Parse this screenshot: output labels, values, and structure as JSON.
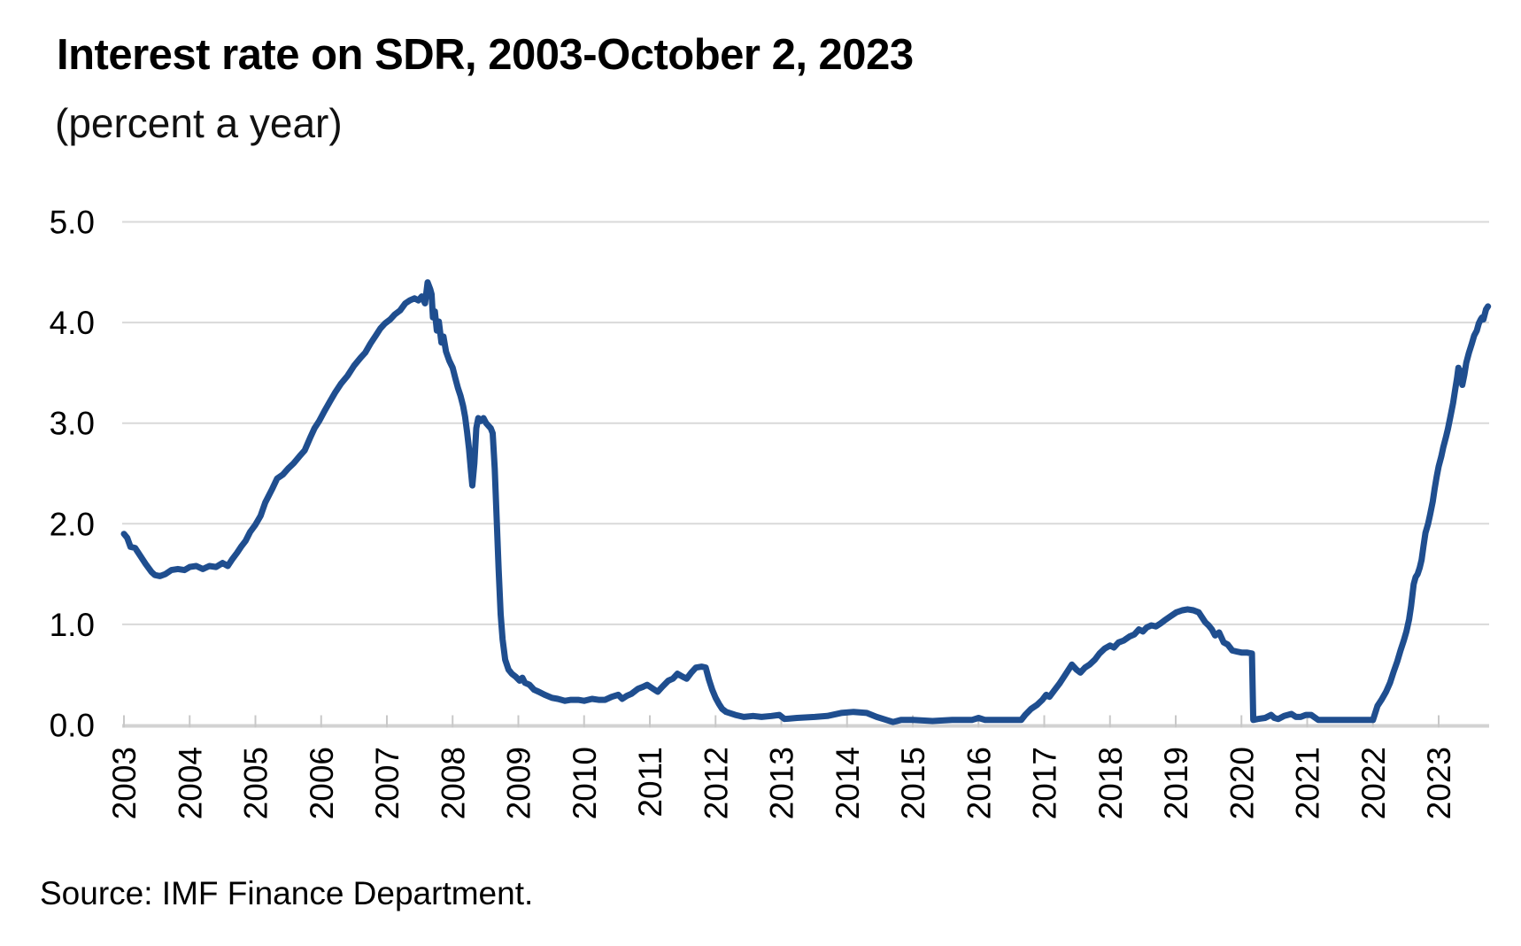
{
  "header": {
    "title": "Interest rate on SDR, 2003-October 2, 2023",
    "subtitle": "(percent a year)"
  },
  "footer": {
    "source": "Source: IMF Finance Department."
  },
  "chart_data": {
    "type": "line",
    "title": "Interest rate on SDR, 2003-October 2, 2023",
    "subtitle": "(percent a year)",
    "xlabel": "",
    "ylabel": "",
    "xlim": [
      2003.0,
      2023.77
    ],
    "ylim": [
      0.0,
      5.0
    ],
    "grid": "horizontal",
    "legend": "none",
    "y_ticks": [
      0,
      1,
      2,
      3,
      4,
      5
    ],
    "y_tick_labels": [
      "0.0",
      "1.0",
      "2.0",
      "3.0",
      "4.0",
      "5.0"
    ],
    "x_ticks": [
      2003,
      2004,
      2005,
      2006,
      2007,
      2008,
      2009,
      2010,
      2011,
      2012,
      2013,
      2014,
      2015,
      2016,
      2017,
      2018,
      2019,
      2020,
      2021,
      2022,
      2023
    ],
    "x_tick_labels": [
      "2003",
      "2004",
      "2005",
      "2006",
      "2007",
      "2008",
      "2009",
      "2010",
      "2011",
      "2012",
      "2013",
      "2014",
      "2015",
      "2016",
      "2017",
      "2018",
      "2019",
      "2020",
      "2021",
      "2022",
      "2023"
    ],
    "colors": {
      "line": "#1F4E8F",
      "grid": "#D9D9D9",
      "axis": "#D2D2D2",
      "tick": "#C8C8C8",
      "text": "#000000",
      "background": "#FFFFFF"
    },
    "series": [
      {
        "name": "SDR interest rate",
        "color": "#1F4E8F",
        "points": [
          [
            2003.0,
            1.9
          ],
          [
            2003.05,
            1.86
          ],
          [
            2003.1,
            1.77
          ],
          [
            2003.17,
            1.76
          ],
          [
            2003.25,
            1.68
          ],
          [
            2003.33,
            1.6
          ],
          [
            2003.42,
            1.52
          ],
          [
            2003.47,
            1.49
          ],
          [
            2003.55,
            1.48
          ],
          [
            2003.63,
            1.5
          ],
          [
            2003.72,
            1.54
          ],
          [
            2003.82,
            1.55
          ],
          [
            2003.92,
            1.54
          ],
          [
            2004.0,
            1.57
          ],
          [
            2004.1,
            1.58
          ],
          [
            2004.2,
            1.55
          ],
          [
            2004.3,
            1.58
          ],
          [
            2004.4,
            1.57
          ],
          [
            2004.5,
            1.61
          ],
          [
            2004.58,
            1.58
          ],
          [
            2004.65,
            1.65
          ],
          [
            2004.72,
            1.71
          ],
          [
            2004.78,
            1.77
          ],
          [
            2004.85,
            1.83
          ],
          [
            2004.92,
            1.92
          ],
          [
            2005.0,
            1.99
          ],
          [
            2005.08,
            2.08
          ],
          [
            2005.15,
            2.21
          ],
          [
            2005.25,
            2.34
          ],
          [
            2005.33,
            2.45
          ],
          [
            2005.42,
            2.49
          ],
          [
            2005.5,
            2.55
          ],
          [
            2005.58,
            2.6
          ],
          [
            2005.67,
            2.67
          ],
          [
            2005.75,
            2.73
          ],
          [
            2005.83,
            2.85
          ],
          [
            2005.9,
            2.95
          ],
          [
            2005.97,
            3.02
          ],
          [
            2006.05,
            3.12
          ],
          [
            2006.13,
            3.21
          ],
          [
            2006.21,
            3.3
          ],
          [
            2006.3,
            3.39
          ],
          [
            2006.4,
            3.47
          ],
          [
            2006.5,
            3.57
          ],
          [
            2006.6,
            3.65
          ],
          [
            2006.67,
            3.7
          ],
          [
            2006.75,
            3.79
          ],
          [
            2006.83,
            3.87
          ],
          [
            2006.9,
            3.94
          ],
          [
            2006.97,
            3.99
          ],
          [
            2007.05,
            4.03
          ],
          [
            2007.12,
            4.08
          ],
          [
            2007.2,
            4.12
          ],
          [
            2007.28,
            4.19
          ],
          [
            2007.35,
            4.22
          ],
          [
            2007.42,
            4.24
          ],
          [
            2007.48,
            4.22
          ],
          [
            2007.53,
            4.26
          ],
          [
            2007.58,
            4.19
          ],
          [
            2007.62,
            4.4
          ],
          [
            2007.66,
            4.33
          ],
          [
            2007.68,
            4.28
          ],
          [
            2007.7,
            4.05
          ],
          [
            2007.73,
            4.11
          ],
          [
            2007.76,
            3.92
          ],
          [
            2007.79,
            4.01
          ],
          [
            2007.83,
            3.8
          ],
          [
            2007.86,
            3.86
          ],
          [
            2007.9,
            3.71
          ],
          [
            2007.95,
            3.62
          ],
          [
            2008.0,
            3.55
          ],
          [
            2008.04,
            3.45
          ],
          [
            2008.08,
            3.35
          ],
          [
            2008.12,
            3.27
          ],
          [
            2008.16,
            3.17
          ],
          [
            2008.19,
            3.06
          ],
          [
            2008.22,
            2.91
          ],
          [
            2008.25,
            2.74
          ],
          [
            2008.28,
            2.52
          ],
          [
            2008.3,
            2.38
          ],
          [
            2008.33,
            2.6
          ],
          [
            2008.36,
            2.95
          ],
          [
            2008.39,
            3.05
          ],
          [
            2008.43,
            3.02
          ],
          [
            2008.47,
            3.05
          ],
          [
            2008.51,
            3.0
          ],
          [
            2008.55,
            2.97
          ],
          [
            2008.58,
            2.95
          ],
          [
            2008.61,
            2.9
          ],
          [
            2008.64,
            2.55
          ],
          [
            2008.67,
            2.05
          ],
          [
            2008.7,
            1.55
          ],
          [
            2008.73,
            1.1
          ],
          [
            2008.76,
            0.85
          ],
          [
            2008.8,
            0.65
          ],
          [
            2008.85,
            0.55
          ],
          [
            2008.9,
            0.51
          ],
          [
            2008.96,
            0.48
          ],
          [
            2009.02,
            0.44
          ],
          [
            2009.06,
            0.47
          ],
          [
            2009.1,
            0.42
          ],
          [
            2009.17,
            0.4
          ],
          [
            2009.24,
            0.35
          ],
          [
            2009.31,
            0.33
          ],
          [
            2009.4,
            0.3
          ],
          [
            2009.51,
            0.27
          ],
          [
            2009.6,
            0.26
          ],
          [
            2009.71,
            0.24
          ],
          [
            2009.8,
            0.25
          ],
          [
            2009.91,
            0.25
          ],
          [
            2010.0,
            0.24
          ],
          [
            2010.12,
            0.26
          ],
          [
            2010.22,
            0.25
          ],
          [
            2010.32,
            0.25
          ],
          [
            2010.42,
            0.28
          ],
          [
            2010.52,
            0.3
          ],
          [
            2010.58,
            0.26
          ],
          [
            2010.65,
            0.29
          ],
          [
            2010.72,
            0.31
          ],
          [
            2010.82,
            0.36
          ],
          [
            2010.9,
            0.38
          ],
          [
            2010.96,
            0.4
          ],
          [
            2011.05,
            0.36
          ],
          [
            2011.12,
            0.33
          ],
          [
            2011.19,
            0.38
          ],
          [
            2011.28,
            0.44
          ],
          [
            2011.35,
            0.46
          ],
          [
            2011.42,
            0.51
          ],
          [
            2011.5,
            0.48
          ],
          [
            2011.56,
            0.46
          ],
          [
            2011.63,
            0.52
          ],
          [
            2011.7,
            0.57
          ],
          [
            2011.79,
            0.58
          ],
          [
            2011.85,
            0.57
          ],
          [
            2011.9,
            0.45
          ],
          [
            2011.95,
            0.35
          ],
          [
            2012.0,
            0.27
          ],
          [
            2012.05,
            0.21
          ],
          [
            2012.1,
            0.16
          ],
          [
            2012.16,
            0.13
          ],
          [
            2012.3,
            0.1
          ],
          [
            2012.43,
            0.08
          ],
          [
            2012.57,
            0.09
          ],
          [
            2012.7,
            0.08
          ],
          [
            2012.85,
            0.09
          ],
          [
            2012.97,
            0.1
          ],
          [
            2013.05,
            0.06
          ],
          [
            2013.24,
            0.07
          ],
          [
            2013.51,
            0.08
          ],
          [
            2013.7,
            0.09
          ],
          [
            2013.91,
            0.12
          ],
          [
            2014.1,
            0.13
          ],
          [
            2014.3,
            0.12
          ],
          [
            2014.45,
            0.08
          ],
          [
            2014.6,
            0.05
          ],
          [
            2014.7,
            0.03
          ],
          [
            2014.82,
            0.05
          ],
          [
            2015.0,
            0.05
          ],
          [
            2015.3,
            0.04
          ],
          [
            2015.6,
            0.05
          ],
          [
            2015.9,
            0.05
          ],
          [
            2016.0,
            0.07
          ],
          [
            2016.1,
            0.05
          ],
          [
            2016.4,
            0.05
          ],
          [
            2016.65,
            0.05
          ],
          [
            2016.71,
            0.1
          ],
          [
            2016.8,
            0.16
          ],
          [
            2016.89,
            0.2
          ],
          [
            2016.97,
            0.25
          ],
          [
            2017.03,
            0.3
          ],
          [
            2017.08,
            0.28
          ],
          [
            2017.16,
            0.35
          ],
          [
            2017.23,
            0.41
          ],
          [
            2017.3,
            0.48
          ],
          [
            2017.37,
            0.55
          ],
          [
            2017.42,
            0.6
          ],
          [
            2017.49,
            0.55
          ],
          [
            2017.55,
            0.52
          ],
          [
            2017.62,
            0.57
          ],
          [
            2017.69,
            0.6
          ],
          [
            2017.77,
            0.65
          ],
          [
            2017.84,
            0.71
          ],
          [
            2017.92,
            0.76
          ],
          [
            2018.0,
            0.79
          ],
          [
            2018.06,
            0.77
          ],
          [
            2018.13,
            0.82
          ],
          [
            2018.21,
            0.84
          ],
          [
            2018.3,
            0.88
          ],
          [
            2018.37,
            0.9
          ],
          [
            2018.44,
            0.95
          ],
          [
            2018.5,
            0.93
          ],
          [
            2018.56,
            0.97
          ],
          [
            2018.63,
            0.99
          ],
          [
            2018.7,
            0.98
          ],
          [
            2018.77,
            1.01
          ],
          [
            2018.83,
            1.04
          ],
          [
            2018.92,
            1.08
          ],
          [
            2019.01,
            1.12
          ],
          [
            2019.1,
            1.14
          ],
          [
            2019.18,
            1.15
          ],
          [
            2019.27,
            1.14
          ],
          [
            2019.35,
            1.12
          ],
          [
            2019.45,
            1.02
          ],
          [
            2019.5,
            0.99
          ],
          [
            2019.55,
            0.95
          ],
          [
            2019.6,
            0.89
          ],
          [
            2019.66,
            0.92
          ],
          [
            2019.73,
            0.82
          ],
          [
            2019.79,
            0.8
          ],
          [
            2019.86,
            0.74
          ],
          [
            2019.93,
            0.73
          ],
          [
            2020.0,
            0.72
          ],
          [
            2020.08,
            0.72
          ],
          [
            2020.16,
            0.71
          ],
          [
            2020.18,
            0.05
          ],
          [
            2020.25,
            0.06
          ],
          [
            2020.36,
            0.07
          ],
          [
            2020.45,
            0.1
          ],
          [
            2020.5,
            0.07
          ],
          [
            2020.56,
            0.06
          ],
          [
            2020.65,
            0.09
          ],
          [
            2020.76,
            0.11
          ],
          [
            2020.83,
            0.08
          ],
          [
            2020.9,
            0.08
          ],
          [
            2020.98,
            0.1
          ],
          [
            2021.06,
            0.1
          ],
          [
            2021.17,
            0.05
          ],
          [
            2021.4,
            0.05
          ],
          [
            2021.7,
            0.05
          ],
          [
            2022.0,
            0.05
          ],
          [
            2022.07,
            0.19
          ],
          [
            2022.13,
            0.25
          ],
          [
            2022.2,
            0.33
          ],
          [
            2022.26,
            0.42
          ],
          [
            2022.31,
            0.52
          ],
          [
            2022.37,
            0.63
          ],
          [
            2022.42,
            0.74
          ],
          [
            2022.47,
            0.84
          ],
          [
            2022.51,
            0.93
          ],
          [
            2022.55,
            1.05
          ],
          [
            2022.58,
            1.18
          ],
          [
            2022.62,
            1.4
          ],
          [
            2022.65,
            1.47
          ],
          [
            2022.68,
            1.5
          ],
          [
            2022.71,
            1.56
          ],
          [
            2022.74,
            1.64
          ],
          [
            2022.77,
            1.78
          ],
          [
            2022.8,
            1.91
          ],
          [
            2022.84,
            2.0
          ],
          [
            2022.87,
            2.09
          ],
          [
            2022.91,
            2.22
          ],
          [
            2022.94,
            2.35
          ],
          [
            2022.97,
            2.47
          ],
          [
            2023.0,
            2.57
          ],
          [
            2023.04,
            2.67
          ],
          [
            2023.07,
            2.76
          ],
          [
            2023.11,
            2.86
          ],
          [
            2023.14,
            2.94
          ],
          [
            2023.18,
            3.07
          ],
          [
            2023.22,
            3.2
          ],
          [
            2023.25,
            3.33
          ],
          [
            2023.28,
            3.45
          ],
          [
            2023.3,
            3.55
          ],
          [
            2023.32,
            3.42
          ],
          [
            2023.34,
            3.52
          ],
          [
            2023.36,
            3.38
          ],
          [
            2023.39,
            3.48
          ],
          [
            2023.42,
            3.6
          ],
          [
            2023.46,
            3.7
          ],
          [
            2023.5,
            3.78
          ],
          [
            2023.54,
            3.87
          ],
          [
            2023.58,
            3.92
          ],
          [
            2023.61,
            3.99
          ],
          [
            2023.64,
            4.03
          ],
          [
            2023.66,
            4.05
          ],
          [
            2023.68,
            4.03
          ],
          [
            2023.7,
            4.08
          ],
          [
            2023.72,
            4.13
          ],
          [
            2023.75,
            4.16
          ]
        ]
      }
    ]
  }
}
